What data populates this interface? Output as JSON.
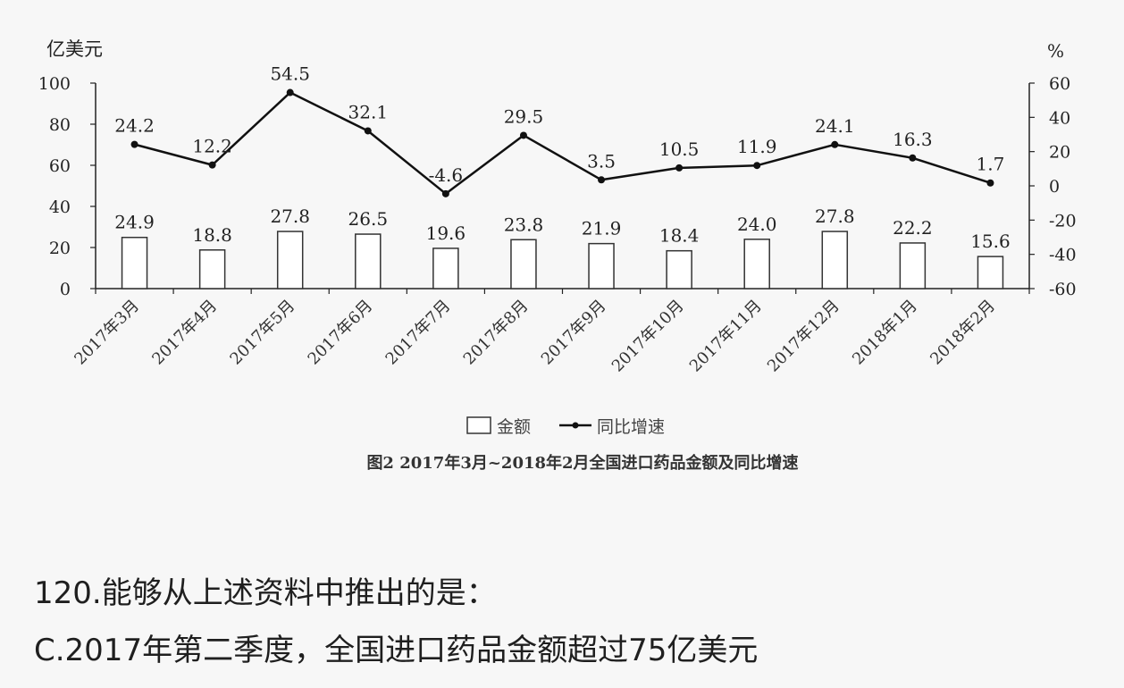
{
  "chart_data": {
    "type": "bar",
    "categories": [
      "2017年3月",
      "2017年4月",
      "2017年5月",
      "2017年6月",
      "2017年7月",
      "2017年8月",
      "2017年9月",
      "2017年10月",
      "2017年11月",
      "2017年12月",
      "2018年1月",
      "2018年2月"
    ],
    "series": [
      {
        "name": "金额",
        "kind": "bar",
        "axis": "left",
        "values": [
          24.9,
          18.8,
          27.8,
          26.5,
          19.6,
          23.8,
          21.9,
          18.4,
          24.0,
          27.8,
          22.2,
          15.6
        ]
      },
      {
        "name": "同比增速",
        "kind": "line",
        "axis": "right",
        "values": [
          24.2,
          12.2,
          54.5,
          32.1,
          -4.6,
          29.5,
          3.5,
          10.5,
          11.9,
          24.1,
          16.3,
          1.7
        ]
      }
    ],
    "left_axis": {
      "unit": "亿美元",
      "ylim": [
        0,
        100
      ],
      "ticks": [
        0,
        20,
        40,
        60,
        80,
        100
      ]
    },
    "right_axis": {
      "unit": "%",
      "ylim": [
        -60,
        60
      ],
      "ticks": [
        -60,
        -40,
        -20,
        0,
        20,
        40,
        60
      ]
    },
    "title": "图2  2017年3月~2018年2月全国进口药品金额及同比增速",
    "legend_position": "bottom",
    "grid": false
  },
  "question": {
    "prompt": "120.能够从上述资料中推出的是：",
    "option": "C.2017年第二季度，全国进口药品金额超过75亿美元"
  }
}
